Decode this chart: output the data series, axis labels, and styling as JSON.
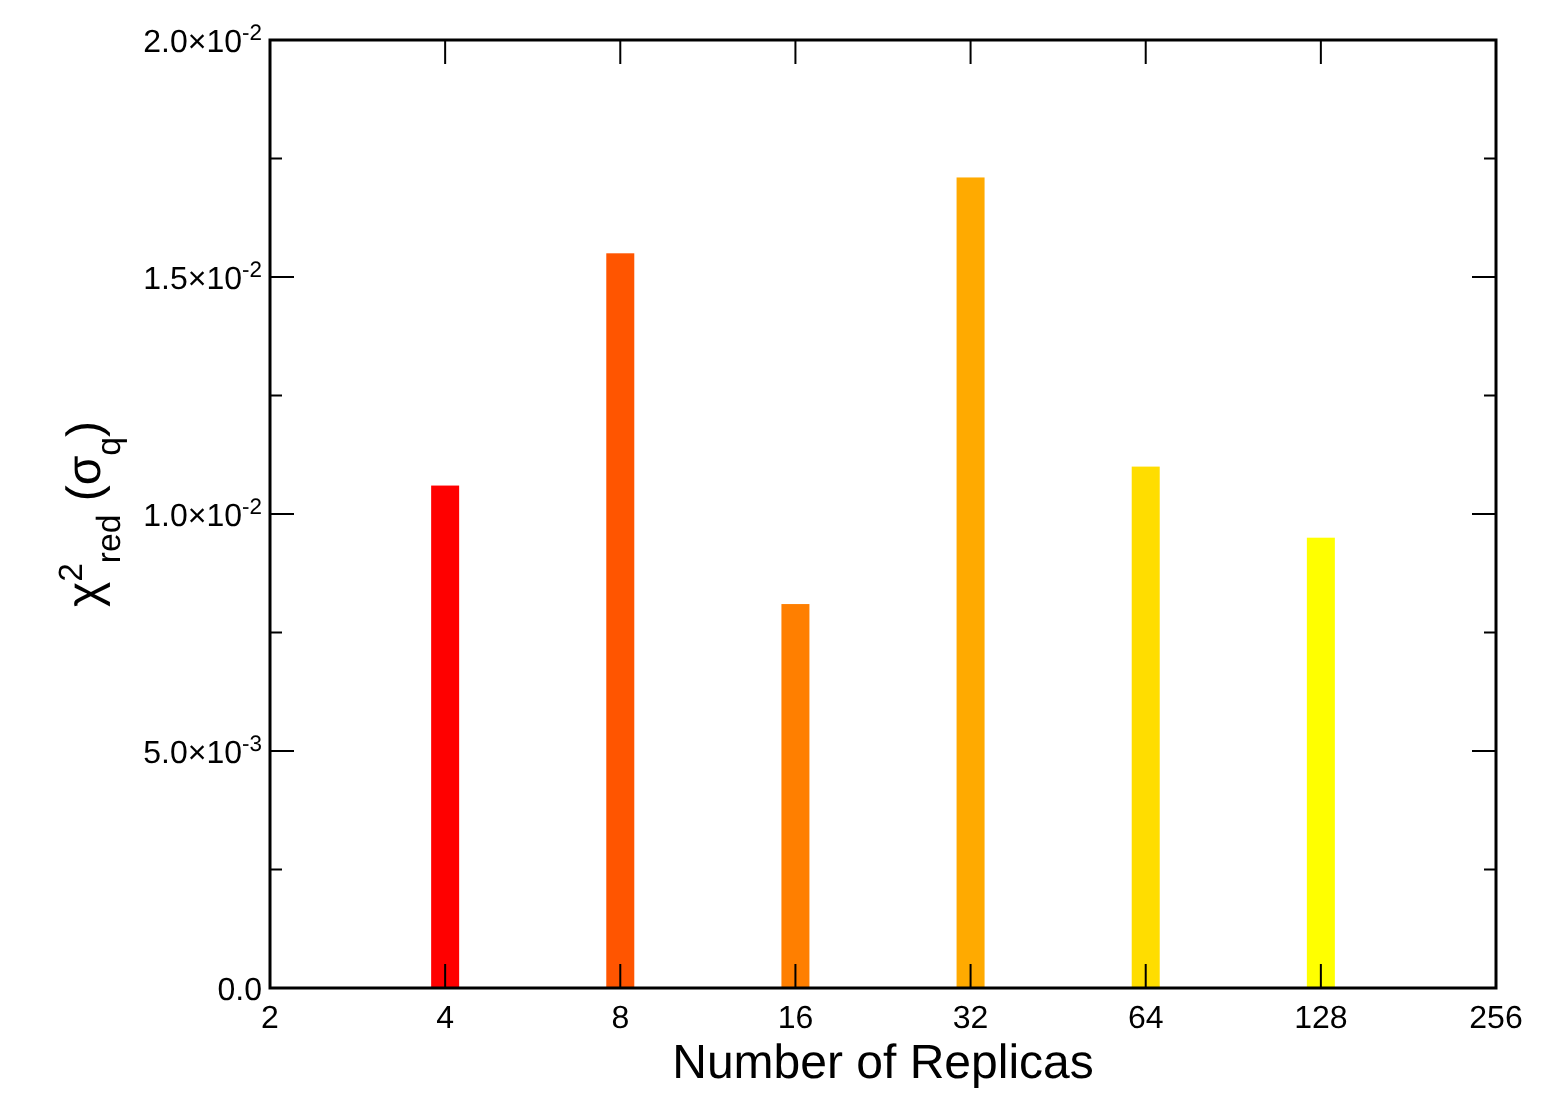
{
  "chart_data": {
    "type": "bar",
    "xlabel": "Number of Replicas",
    "ylabel": "χ$^{2}$$_{red}$ (σ$_{q}$)",
    "x": [
      4,
      8,
      16,
      32,
      64,
      128
    ],
    "values": [
      0.0106,
      0.0155,
      0.0081,
      0.0171,
      0.011,
      0.0095
    ],
    "colors": [
      "#ff0000",
      "#ff5500",
      "#ff7f00",
      "#ffaa00",
      "#ffdd00",
      "#ffff00"
    ],
    "log": "x",
    "xlim": [
      2,
      256
    ],
    "xticks": [
      2,
      4,
      8,
      16,
      32,
      64,
      128,
      256
    ],
    "ylim": [
      0,
      0.02
    ],
    "yticks": [
      {
        "value": 0,
        "label": "0.0"
      },
      {
        "value": 0.0025,
        "label": null
      },
      {
        "value": 0.005,
        "label": "5.0×10$^{-3}$"
      },
      {
        "value": 0.0075,
        "label": null
      },
      {
        "value": 0.01,
        "label": "1.0×10$^{-2}$"
      },
      {
        "value": 0.0125,
        "label": null
      },
      {
        "value": 0.015,
        "label": "1.5×10$^{-2}$"
      },
      {
        "value": 0.0175,
        "label": null
      },
      {
        "value": 0.02,
        "label": "2.0×10$^{-2}$"
      }
    ],
    "grid": false
  }
}
